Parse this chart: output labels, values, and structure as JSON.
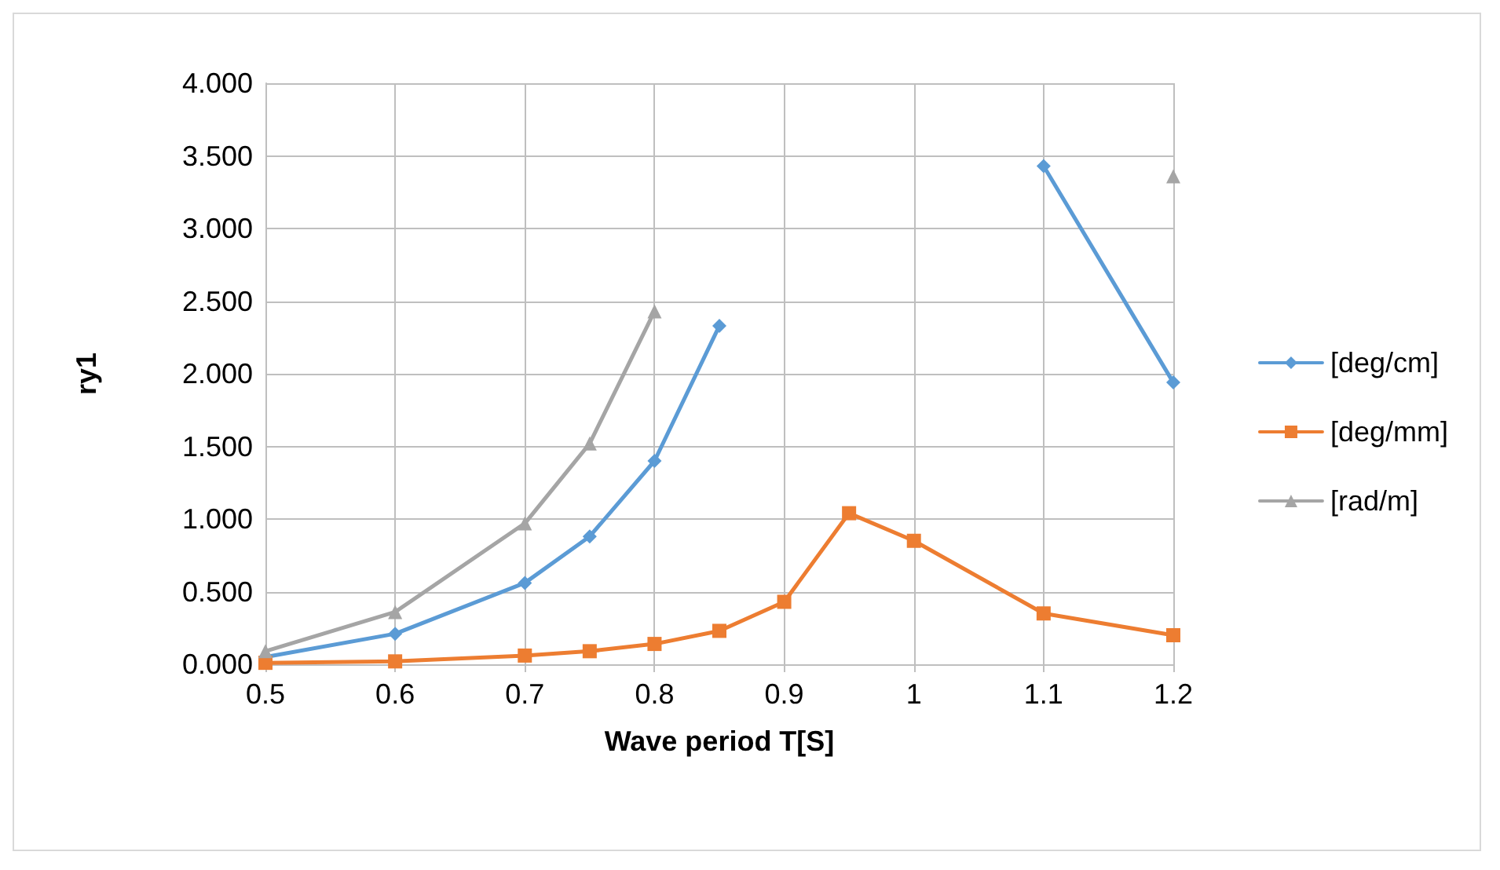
{
  "chart_data": {
    "type": "line",
    "xlabel": "Wave period T[S]",
    "ylabel": "ry1",
    "x": [
      0.5,
      0.6,
      0.7,
      0.75,
      0.8,
      0.85,
      0.9,
      0.95,
      1.0,
      1.1,
      1.2
    ],
    "xlim": [
      0.5,
      1.2
    ],
    "xticks": [
      0.5,
      0.6,
      0.7,
      0.8,
      0.9,
      1,
      1.1,
      1.2
    ],
    "ylim": [
      0,
      4
    ],
    "yticks": [
      {
        "value": 0,
        "label": "0.000"
      },
      {
        "value": 0.5,
        "label": "0.500"
      },
      {
        "value": 1,
        "label": "1.000"
      },
      {
        "value": 1.5,
        "label": "1.500"
      },
      {
        "value": 2,
        "label": "2.000"
      },
      {
        "value": 2.5,
        "label": "2.500"
      },
      {
        "value": 3,
        "label": "3.000"
      },
      {
        "value": 3.5,
        "label": "3.500"
      },
      {
        "value": 4,
        "label": "4.000"
      }
    ],
    "grid": true,
    "legend": "right",
    "line_style": "solid",
    "series": [
      {
        "name": "[deg/cm]",
        "color": "#5b9bd5",
        "marker": "diamond",
        "values": [
          0.05,
          0.21,
          0.56,
          0.88,
          1.4,
          2.33,
          null,
          null,
          null,
          3.43,
          1.94
        ]
      },
      {
        "name": "[deg/mm]",
        "color": "#ed7d31",
        "marker": "square",
        "values": [
          0.01,
          0.02,
          0.06,
          0.09,
          0.14,
          0.23,
          0.43,
          1.04,
          0.85,
          0.35,
          0.2
        ]
      },
      {
        "name": "[rad/m]",
        "color": "#a5a5a5",
        "marker": "triangle",
        "values": [
          0.09,
          0.36,
          0.97,
          1.52,
          2.43,
          null,
          null,
          null,
          null,
          null,
          3.36
        ]
      }
    ]
  }
}
